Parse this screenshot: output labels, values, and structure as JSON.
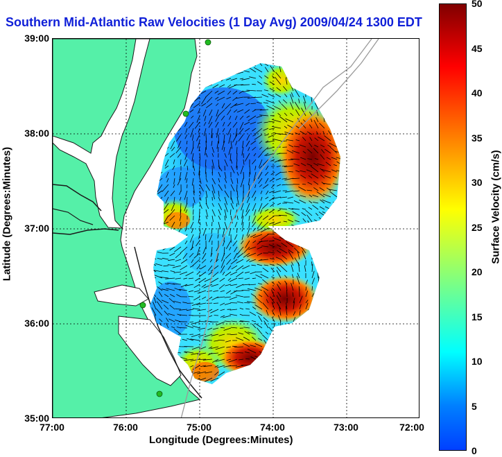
{
  "title": "Southern Mid-Atlantic Raw Velocities (1 Day Avg) 2009/04/24 1300 EDT",
  "axes": {
    "xlabel": "Longitude (Degrees:Minutes)",
    "ylabel": "Latitude (Degrees:Minutes)",
    "xticks": [
      "77:00",
      "76:00",
      "75:00",
      "74:00",
      "73:00",
      "72:00"
    ],
    "yticks": [
      "39:00",
      "38:00",
      "37:00",
      "36:00",
      "35:00"
    ],
    "xlim_deg": [
      -77,
      -72
    ],
    "ylim_deg": [
      35,
      39
    ]
  },
  "colorbar": {
    "label": "Surface Velocity (cm/s)",
    "ticks": [
      "50",
      "45",
      "40",
      "35",
      "30",
      "25",
      "20",
      "15",
      "10",
      "5",
      "0"
    ],
    "range": [
      0,
      50
    ],
    "colormap": "jet"
  },
  "colors": {
    "title": "#0f1fd8",
    "land": "#55f0a8",
    "water": "#ffffff",
    "coast_outline": "#1a1a1a",
    "bathymetry": "#9a9a9a",
    "station_marker": "#22bb22",
    "vector": "#000000"
  }
}
